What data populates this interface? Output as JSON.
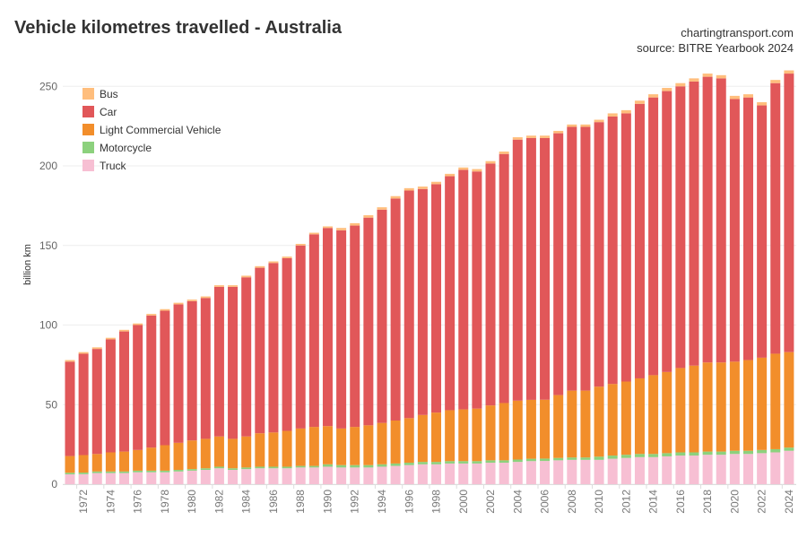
{
  "header": {
    "title": "Vehicle kilometres travelled - Australia",
    "site": "chartingtransport.com",
    "source": "source: BITRE Yearbook 2024"
  },
  "chart_data": {
    "type": "bar",
    "stacked": true,
    "title": "Vehicle kilometres travelled - Australia",
    "xlabel": "",
    "ylabel": "billion km",
    "ylim": [
      0,
      270
    ],
    "yticks": [
      0,
      50,
      100,
      150,
      200,
      250
    ],
    "grid": true,
    "legend_position": "top-left",
    "categories": [
      1971,
      1972,
      1973,
      1974,
      1975,
      1976,
      1977,
      1978,
      1979,
      1980,
      1981,
      1982,
      1983,
      1984,
      1985,
      1986,
      1987,
      1988,
      1989,
      1990,
      1991,
      1992,
      1993,
      1994,
      1995,
      1996,
      1997,
      1998,
      1999,
      2000,
      2001,
      2002,
      2003,
      2004,
      2005,
      2006,
      2007,
      2008,
      2009,
      2010,
      2011,
      2012,
      2013,
      2014,
      2015,
      2016,
      2017,
      2018,
      2019,
      2020,
      2021,
      2022,
      2023,
      2024
    ],
    "series": [
      {
        "name": "Truck",
        "color": "#f7bfd3",
        "values": [
          6.2,
          6.3,
          7,
          7,
          7,
          7.5,
          7.5,
          7.5,
          8,
          8.5,
          9,
          10,
          9,
          9.5,
          10,
          10,
          10,
          10.5,
          10.5,
          11,
          10.5,
          10.5,
          10.5,
          11,
          11.5,
          12,
          12.5,
          12.5,
          13,
          13,
          13,
          13.5,
          13.5,
          14,
          14.5,
          14.6,
          15,
          15.3,
          15.3,
          15.3,
          16,
          16.5,
          17,
          17,
          17.5,
          18,
          18,
          18.5,
          18.5,
          19,
          19,
          19.5,
          20,
          21
        ]
      },
      {
        "name": "Motorcycle",
        "color": "#8cd17d",
        "values": [
          1,
          1,
          1,
          1,
          1,
          1,
          1,
          1,
          1,
          1,
          1,
          1,
          1,
          1,
          1,
          1,
          1,
          1,
          1,
          1.5,
          1.5,
          1.5,
          1.5,
          1.5,
          1.5,
          1.5,
          1.5,
          1.5,
          1.5,
          1.5,
          1.5,
          1.5,
          1.5,
          1.5,
          1.5,
          1.5,
          1.5,
          1.5,
          1.5,
          2,
          2,
          2,
          2,
          2,
          2,
          2,
          2,
          2,
          2,
          2,
          2,
          2,
          2,
          2
        ]
      },
      {
        "name": "Light Commercial Vehicle",
        "color": "#f28e2b",
        "values": [
          10.5,
          11,
          11,
          12,
          12.5,
          13,
          14.5,
          16,
          17,
          18,
          18.5,
          19,
          18.5,
          19.5,
          21,
          21.5,
          22.5,
          23.5,
          24.5,
          24,
          23,
          24,
          25,
          26,
          27,
          28,
          29.5,
          31,
          32,
          32.5,
          33,
          34.5,
          36,
          37,
          37,
          37,
          39.5,
          42,
          42,
          44,
          45,
          46,
          47.5,
          49.5,
          51,
          53,
          54.5,
          56,
          56,
          56,
          57,
          58,
          60,
          60
        ]
      },
      {
        "name": "Car",
        "color": "#e15759",
        "values": [
          59.3,
          63.7,
          66,
          71,
          75.5,
          78.5,
          83,
          84.5,
          87,
          87.5,
          88.5,
          94,
          95.5,
          100,
          104,
          106.5,
          108.5,
          115,
          121,
          124.5,
          124.5,
          126.5,
          130.5,
          134,
          139.5,
          143,
          142,
          143.5,
          147,
          150.5,
          149,
          152,
          156.5,
          164,
          164.5,
          164.4,
          164.5,
          165.7,
          165.7,
          166.2,
          168,
          168.5,
          172.5,
          174.5,
          176.5,
          177,
          178.5,
          179.5,
          178.5,
          165,
          165,
          158.5,
          170,
          175
        ]
      },
      {
        "name": "Bus",
        "color": "#ffbe7d",
        "values": [
          1,
          1,
          1,
          1,
          1,
          1,
          1,
          1,
          1,
          1,
          1,
          1,
          1,
          1,
          1,
          1,
          1,
          1,
          1,
          1,
          1.5,
          1.5,
          1.5,
          1.5,
          1.5,
          1.5,
          1.5,
          1.5,
          1.5,
          1.5,
          1.5,
          1.5,
          1.5,
          1.5,
          1.5,
          1.5,
          1.5,
          1.5,
          1.5,
          1.5,
          2,
          2,
          2,
          2,
          2,
          2,
          2,
          2,
          2,
          2,
          2,
          2,
          2,
          2
        ]
      }
    ],
    "legend_order": [
      "Bus",
      "Car",
      "Light Commercial Vehicle",
      "Motorcycle",
      "Truck"
    ]
  }
}
